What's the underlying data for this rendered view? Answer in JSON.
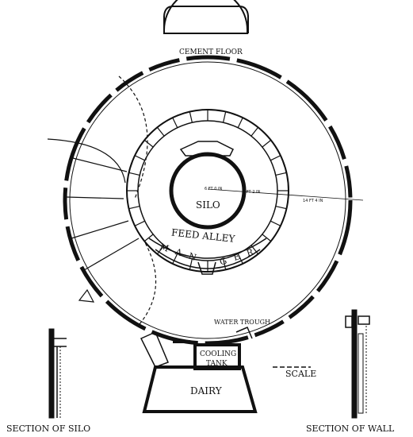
{
  "labels": {
    "cement_floor": "CEMENT FLOOR",
    "silo": "SILO",
    "feed_alley": "FEED ALLEY",
    "manger_left": "M A N",
    "manger_right": "G E R",
    "dim_silo_inner": "6 FT 0 IN",
    "dim_silo_outer": "6 FT 2 IN",
    "dim_outer": "14 FT 4 IN",
    "water_trough": "WATER TROUGH",
    "cooling": "COOLING",
    "tank": "TANK",
    "scale": "SCALE",
    "dairy": "DAIRY",
    "section_silo": "SECTION OF SILO",
    "section_wall": "SECTION OF WALL"
  },
  "colors": {
    "ink": "#111111",
    "paper": "#ffffff"
  }
}
